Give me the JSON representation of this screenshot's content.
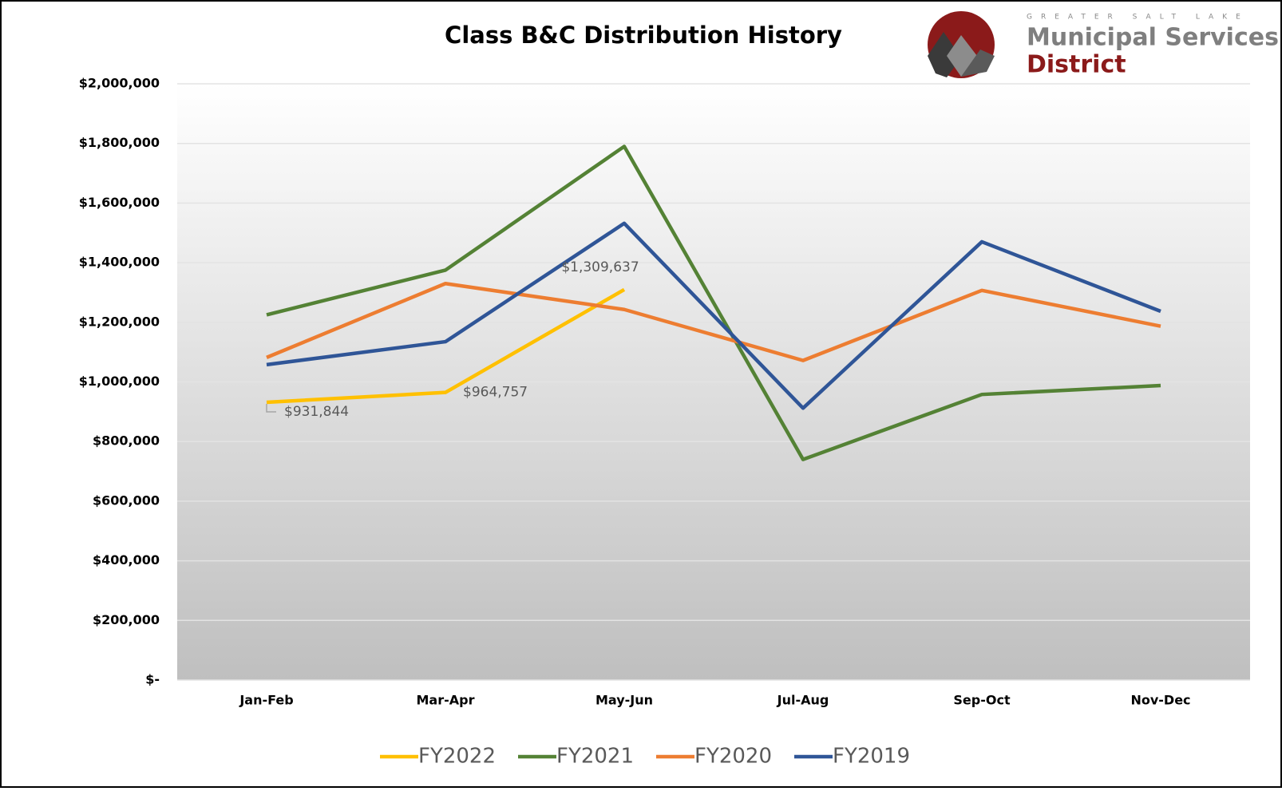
{
  "chart_data": {
    "type": "line",
    "title": "Class B&C Distribution History",
    "logo": {
      "top": "GREATER SALT LAKE",
      "line1": "Municipal Services",
      "line2": "District"
    },
    "categories": [
      "Jan-Feb",
      "Mar-Apr",
      "May-Jun",
      "Jul-Aug",
      "Sep-Oct",
      "Nov-Dec"
    ],
    "series": [
      {
        "name": "FY2022",
        "color": "#ffc000",
        "values": [
          931844,
          964757,
          1309637,
          null,
          null,
          null
        ],
        "value_labels": [
          "$931,844",
          "$964,757",
          "$1,309,637",
          null,
          null,
          null
        ]
      },
      {
        "name": "FY2021",
        "color": "#548235",
        "values": [
          1225000,
          1375000,
          1790000,
          740000,
          958000,
          988000
        ]
      },
      {
        "name": "FY2020",
        "color": "#ed7d31",
        "values": [
          1082000,
          1330000,
          1243000,
          1072000,
          1307000,
          1187000
        ]
      },
      {
        "name": "FY2019",
        "color": "#2f5597",
        "values": [
          1058000,
          1135000,
          1532000,
          912000,
          1470000,
          1237000
        ]
      }
    ],
    "ylim": [
      0,
      2000000
    ],
    "yticks": [
      {
        "value": 0,
        "label": "$-"
      },
      {
        "value": 200000,
        "label": "$200,000"
      },
      {
        "value": 400000,
        "label": "$400,000"
      },
      {
        "value": 600000,
        "label": "$600,000"
      },
      {
        "value": 800000,
        "label": "$800,000"
      },
      {
        "value": 1000000,
        "label": "$1,000,000"
      },
      {
        "value": 1200000,
        "label": "$1,200,000"
      },
      {
        "value": 1400000,
        "label": "$1,400,000"
      },
      {
        "value": 1600000,
        "label": "$1,600,000"
      },
      {
        "value": 1800000,
        "label": "$1,800,000"
      },
      {
        "value": 2000000,
        "label": "$2,000,000"
      }
    ],
    "grid": true,
    "legend": "bottom"
  }
}
